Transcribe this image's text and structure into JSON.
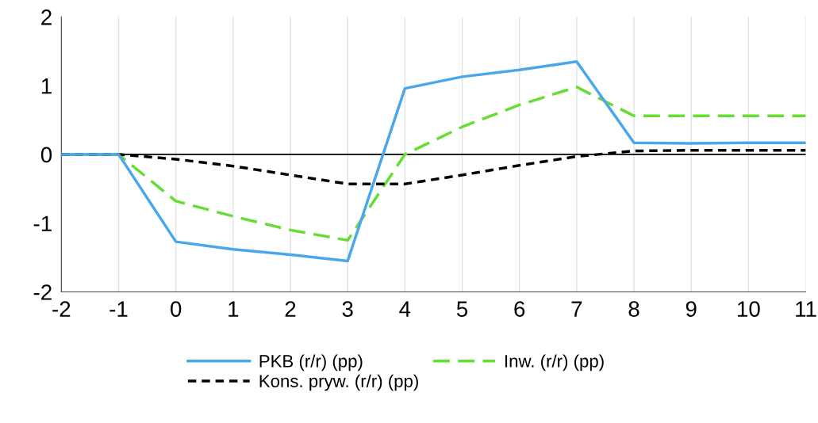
{
  "chart_data": {
    "type": "line",
    "x": [
      -2,
      -1,
      0,
      1,
      2,
      3,
      4,
      5,
      6,
      7,
      8,
      9,
      10,
      11
    ],
    "series": [
      {
        "name": "PKB (r/r) (pp)",
        "color": "#4aa8ea",
        "line_style": "solid",
        "values": [
          0,
          0,
          -1.27,
          -1.38,
          -1.46,
          -1.55,
          0.96,
          1.13,
          1.23,
          1.35,
          0.17,
          0.16,
          0.17,
          0.17
        ]
      },
      {
        "name": "Kons. pryw. (r/r) (pp)",
        "color": "#000000",
        "line_style": "dashed",
        "values": [
          0,
          0,
          -0.07,
          -0.17,
          -0.3,
          -0.43,
          -0.43,
          -0.3,
          -0.16,
          -0.03,
          0.05,
          0.06,
          0.06,
          0.06
        ]
      },
      {
        "name": "Inw. (r/r) (pp)",
        "color": "#66dd33",
        "line_style": "dashed",
        "values": [
          0,
          0,
          -0.68,
          -0.9,
          -1.1,
          -1.25,
          0.0,
          0.4,
          0.72,
          0.98,
          0.56,
          0.56,
          0.56,
          0.56
        ]
      }
    ],
    "xlim": [
      -2,
      11
    ],
    "xticks": [
      -2,
      -1,
      0,
      1,
      2,
      3,
      4,
      5,
      6,
      7,
      8,
      9,
      10,
      11
    ],
    "ylim": [
      -2,
      2
    ],
    "yticks": [
      -2,
      -1,
      0,
      1,
      2
    ],
    "ref_lines": [
      {
        "axis": "y",
        "value": 0,
        "label": null,
        "color": "#000000"
      }
    ],
    "grid": "x",
    "legend": "bottom",
    "marker": "none"
  }
}
